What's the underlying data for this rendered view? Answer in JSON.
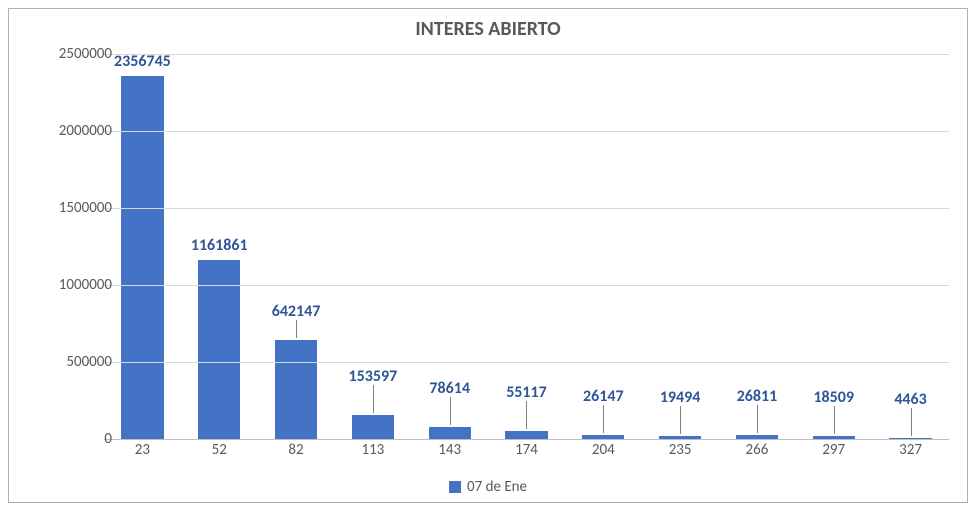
{
  "chart": {
    "type": "bar",
    "title": "INTERES ABIERTO",
    "title_fontsize": 20,
    "title_color": "#595959",
    "background_color": "#ffffff",
    "plot_background": "#ffffff",
    "grid_color": "#d9d9d9",
    "axis_line_color": "#bfbfbf",
    "tick_label_color": "#595959",
    "tick_label_fontsize": 15,
    "data_label_color": "#2f5597",
    "data_label_fontsize": 16,
    "bar_color": "#4472c4",
    "bar_width": 0.55,
    "ylim": [
      0,
      2500000
    ],
    "ytick_step": 500000,
    "yticks": [
      0,
      500000,
      1000000,
      1500000,
      2000000,
      2500000
    ],
    "categories": [
      "23",
      "52",
      "82",
      "113",
      "143",
      "174",
      "204",
      "235",
      "266",
      "297",
      "327"
    ],
    "values": [
      2356745,
      1161861,
      642147,
      153597,
      78614,
      55117,
      26147,
      19494,
      26811,
      18509,
      4463
    ],
    "legend": {
      "label": "07 de Ene",
      "swatch_color": "#4472c4",
      "position": "bottom",
      "fontsize": 15
    }
  }
}
